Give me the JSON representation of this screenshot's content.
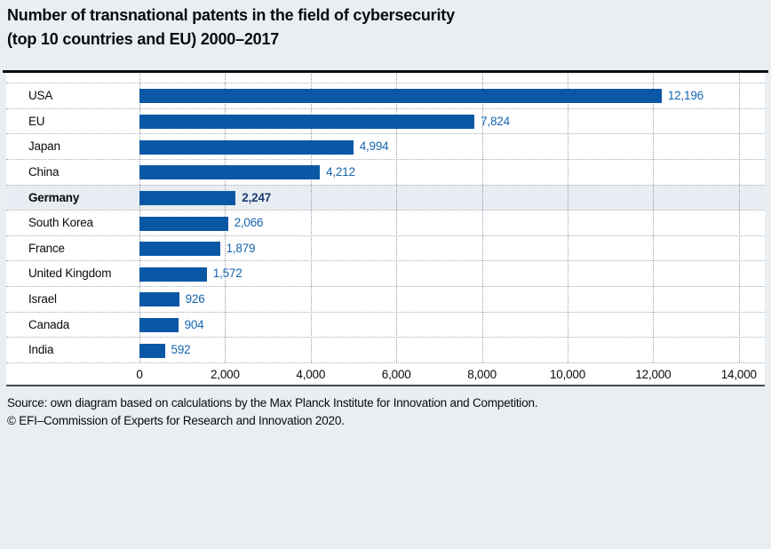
{
  "page": {
    "title_line1": "Number of transnational patents in the field of cybersecurity",
    "title_line2": "(top 10 countries and EU) 2000–2017",
    "source_line1": "Source: own diagram based on calculations by the Max Planck Institute for Innovation and Competition.",
    "source_line2": "© EFI–Commission of Experts for Research and Innovation 2020."
  },
  "colors": {
    "bar": "#0a58a5",
    "value_label": "#1565ae",
    "highlight_value_label": "#1c3e74",
    "page_background": "#e9eef3",
    "panel_background": "#ffffff",
    "highlight_row_background": "#e7edf2",
    "grid_dots": "#979ea6",
    "title_rule": "#0f0f0f",
    "panel_bottom_rule": "#43484d"
  },
  "chart_data": {
    "type": "bar",
    "orientation": "horizontal",
    "title": "Number of transnational patents in the field of cybersecurity (top 10 countries and EU) 2000–2017",
    "categories": [
      "USA",
      "EU",
      "Japan",
      "China",
      "Germany",
      "South Korea",
      "France",
      "United Kingdom",
      "Israel",
      "Canada",
      "India"
    ],
    "values": [
      12196,
      7824,
      4994,
      4212,
      2247,
      2066,
      1879,
      1572,
      926,
      904,
      592
    ],
    "value_labels": [
      "12,196",
      "7,824",
      "4,994",
      "4,212",
      "2,247",
      "2,066",
      "1,879",
      "1,572",
      "926",
      "904",
      "592"
    ],
    "highlighted_category": "Germany",
    "xlabel": "",
    "ylabel": "",
    "xlim": [
      0,
      14000
    ],
    "x_ticks": [
      0,
      2000,
      4000,
      6000,
      8000,
      10000,
      12000,
      14000
    ],
    "x_tick_labels": [
      "0",
      "2,000",
      "4,000",
      "6,000",
      "8,000",
      "10,000",
      "12,000",
      "14,000"
    ],
    "grid": "dotted-vertical-and-row-separators",
    "legend": "none"
  }
}
